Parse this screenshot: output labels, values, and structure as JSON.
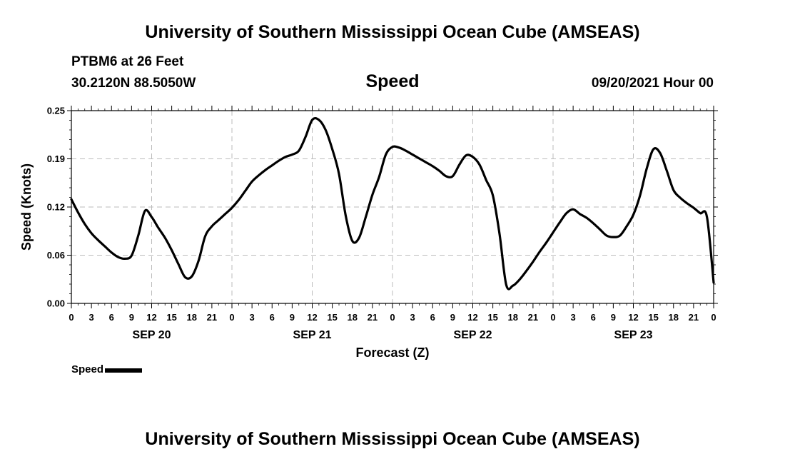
{
  "title_top": "University of Southern Mississippi Ocean Cube (AMSEAS)",
  "title_bottom": "University of Southern Mississippi Ocean Cube (AMSEAS)",
  "station": "PTBM6 at 26 Feet",
  "location": "30.2120N  88.5050W",
  "datetime": "09/20/2021 Hour 00",
  "chart_data": {
    "type": "line",
    "title": "Speed",
    "xlabel": "Forecast (Z)",
    "ylabel": "Speed (Knots)",
    "xlim": [
      0,
      96
    ],
    "ylim": [
      0,
      0.25
    ],
    "yticks": [
      "0.00",
      "0.06",
      "0.12",
      "0.19",
      "0.25"
    ],
    "ytick_values": [
      0,
      0.0625,
      0.125,
      0.1875,
      0.25
    ],
    "xtick_labels": [
      "0",
      "3",
      "6",
      "9",
      "12",
      "15",
      "18",
      "21",
      "0",
      "3",
      "6",
      "9",
      "12",
      "15",
      "18",
      "21",
      "0",
      "3",
      "6",
      "9",
      "12",
      "15",
      "18",
      "21",
      "0",
      "3",
      "6",
      "9",
      "12",
      "15",
      "18",
      "21",
      "0"
    ],
    "date_labels": [
      {
        "label": "SEP 20",
        "hour": 12
      },
      {
        "label": "SEP 21",
        "hour": 36
      },
      {
        "label": "SEP 22",
        "hour": 60
      },
      {
        "label": "SEP 23",
        "hour": 84
      }
    ],
    "grid": true,
    "legend": "bottom-left",
    "series": [
      {
        "name": "Speed",
        "x": [
          0,
          1,
          2,
          3,
          4,
          5,
          6,
          7,
          8,
          9,
          10,
          11,
          12,
          13,
          14,
          15,
          16,
          17,
          18,
          19,
          20,
          21,
          22,
          23,
          24,
          25,
          26,
          27,
          28,
          29,
          30,
          31,
          32,
          33,
          34,
          35,
          36,
          37,
          38,
          39,
          40,
          41,
          42,
          43,
          44,
          45,
          46,
          47,
          48,
          49,
          50,
          51,
          52,
          53,
          54,
          55,
          56,
          57,
          58,
          59,
          60,
          61,
          62,
          63,
          64,
          65,
          66,
          67,
          68,
          69,
          70,
          71,
          72,
          73,
          74,
          75,
          76,
          77,
          78,
          79,
          80,
          81,
          82,
          83,
          84,
          85,
          86,
          87,
          88,
          89,
          90,
          91,
          92,
          93,
          94,
          95,
          96
        ],
        "values": [
          0.135,
          0.118,
          0.103,
          0.091,
          0.082,
          0.074,
          0.066,
          0.06,
          0.058,
          0.062,
          0.088,
          0.12,
          0.112,
          0.098,
          0.085,
          0.069,
          0.051,
          0.034,
          0.035,
          0.055,
          0.087,
          0.1,
          0.108,
          0.116,
          0.124,
          0.134,
          0.146,
          0.158,
          0.166,
          0.173,
          0.179,
          0.185,
          0.19,
          0.193,
          0.198,
          0.216,
          0.238,
          0.238,
          0.225,
          0.2,
          0.168,
          0.114,
          0.081,
          0.085,
          0.112,
          0.141,
          0.164,
          0.193,
          0.203,
          0.202,
          0.198,
          0.193,
          0.188,
          0.183,
          0.178,
          0.172,
          0.165,
          0.165,
          0.18,
          0.192,
          0.19,
          0.18,
          0.16,
          0.14,
          0.09,
          0.024,
          0.023,
          0.031,
          0.042,
          0.054,
          0.067,
          0.079,
          0.092,
          0.105,
          0.117,
          0.122,
          0.116,
          0.111,
          0.104,
          0.096,
          0.088,
          0.086,
          0.088,
          0.1,
          0.115,
          0.14,
          0.175,
          0.2,
          0.195,
          0.172,
          0.147,
          0.137,
          0.13,
          0.124,
          0.117,
          0.112,
          0.027
        ]
      }
    ]
  }
}
